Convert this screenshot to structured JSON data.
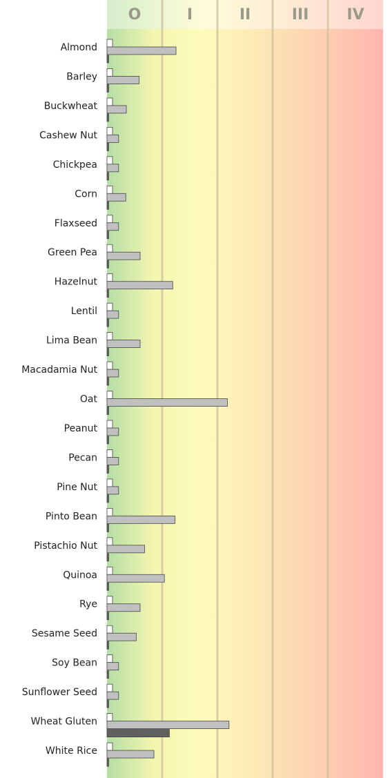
{
  "chart_data": {
    "type": "hbar",
    "bands": [
      "O",
      "I",
      "II",
      "III",
      "IV"
    ],
    "xlim": [
      0,
      5
    ],
    "categories": [
      "Almond",
      "Barley",
      "Buckwheat",
      "Cashew Nut",
      "Chickpea",
      "Corn",
      "Flaxseed",
      "Green Pea",
      "Hazelnut",
      "Lentil",
      "Lima Bean",
      "Macadamia Nut",
      "Oat",
      "Peanut",
      "Pecan",
      "Pine Nut",
      "Pinto Bean",
      "Pistachio Nut",
      "Quinoa",
      "Rye",
      "Sesame Seed",
      "Soy Bean",
      "Sunflower Seed",
      "Wheat Gluten",
      "White Rice"
    ],
    "series": [
      {
        "color": "#ffffff",
        "values": [
          0.1,
          0.1,
          0.1,
          0.1,
          0.1,
          0.1,
          0.1,
          0.1,
          0.1,
          0.1,
          0.1,
          0.1,
          0.1,
          0.1,
          0.1,
          0.1,
          0.1,
          0.1,
          0.1,
          0.1,
          0.1,
          0.1,
          0.1,
          0.1,
          0.1
        ]
      },
      {
        "color": "#c0c0c0",
        "values": [
          1.25,
          0.58,
          0.35,
          0.21,
          0.21,
          0.34,
          0.21,
          0.6,
          1.19,
          0.21,
          0.6,
          0.21,
          2.18,
          0.21,
          0.21,
          0.21,
          1.23,
          0.68,
          1.04,
          0.6,
          0.53,
          0.21,
          0.21,
          2.21,
          0.85
        ]
      },
      {
        "color": "#606060",
        "values": [
          0.03,
          0.03,
          0.03,
          0.03,
          0.03,
          0.03,
          0.03,
          0.03,
          0.03,
          0.03,
          0.03,
          0.03,
          0.03,
          0.03,
          0.03,
          0.03,
          0.03,
          0.03,
          0.03,
          0.03,
          0.03,
          0.03,
          0.03,
          1.13,
          0.03
        ]
      }
    ]
  }
}
